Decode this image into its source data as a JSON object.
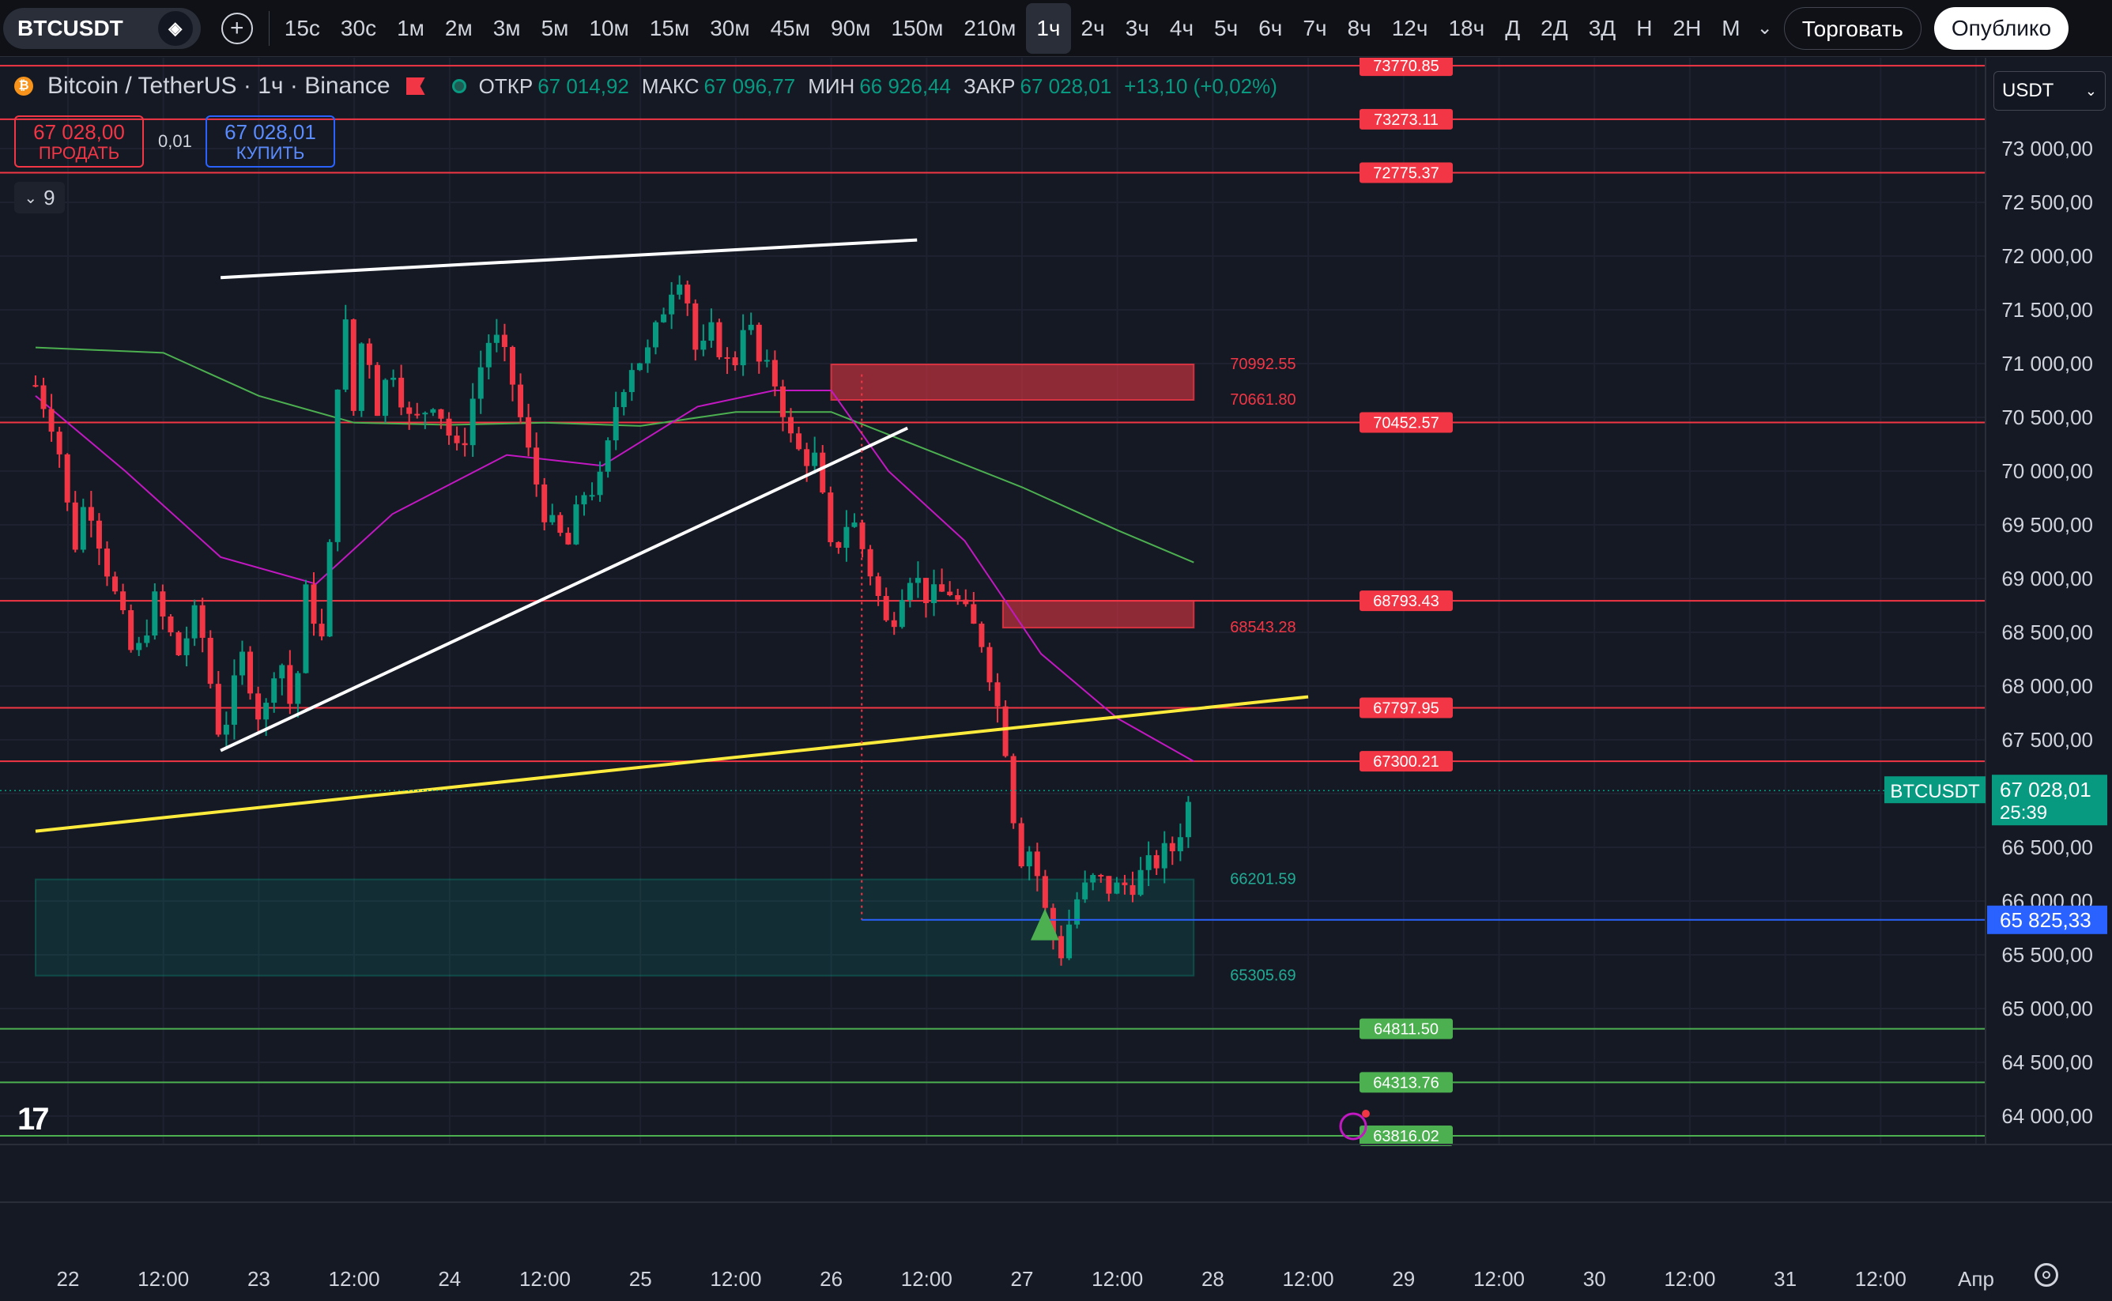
{
  "symbol_pill": "BTCUSDT",
  "intervals": [
    "15с",
    "30с",
    "1м",
    "2м",
    "3м",
    "5м",
    "10м",
    "15м",
    "30м",
    "45м",
    "90м",
    "150м",
    "210м",
    "1ч",
    "2ч",
    "3ч",
    "4ч",
    "5ч",
    "6ч",
    "7ч",
    "8ч",
    "12ч",
    "18ч",
    "Д",
    "2Д",
    "3Д",
    "Н",
    "2Н",
    "М"
  ],
  "active_interval": "1ч",
  "trade_button": "Торговать",
  "publish_button": "Опублико",
  "legend": {
    "title": "Bitcoin / TetherUS · 1ч · Binance",
    "open_label": "ОТКР",
    "open": "67 014,92",
    "high_label": "МАКС",
    "high": "67 096,77",
    "low_label": "МИН",
    "low": "66 926,44",
    "close_label": "ЗАКР",
    "close": "67 028,01",
    "change": "+13,10 (+0,02%)"
  },
  "sell": {
    "price": "67 028,00",
    "label": "ПРОДАТЬ"
  },
  "spread": "0,01",
  "buy": {
    "price": "67 028,01",
    "label": "КУПИТЬ"
  },
  "indicators_count": "9",
  "currency": "USDT",
  "last_price": {
    "symbol": "BTCUSDT",
    "price": "67 028,01",
    "countdown": "25:39"
  },
  "crosshair_price": "65 825,33",
  "chart_data": {
    "type": "candlestick",
    "y_axis": {
      "min": 63500,
      "max": 74000,
      "step": 500
    },
    "y_ticks": [
      "73 000,00",
      "72 500,00",
      "72 000,00",
      "71 500,00",
      "71 000,00",
      "70 500,00",
      "70 000,00",
      "69 500,00",
      "69 000,00",
      "68 500,00",
      "68 000,00",
      "67 500,00",
      "67 000,00",
      "66 500,00",
      "66 000,00",
      "65 500,00",
      "65 000,00",
      "64 500,00",
      "64 000,00"
    ],
    "x_ticks": [
      {
        "label": "22",
        "t": 0.5
      },
      {
        "label": "12:00",
        "t": 1.0
      },
      {
        "label": "23",
        "t": 1.5
      },
      {
        "label": "12:00",
        "t": 2.0
      },
      {
        "label": "24",
        "t": 2.5
      },
      {
        "label": "12:00",
        "t": 3.0
      },
      {
        "label": "25",
        "t": 3.5
      },
      {
        "label": "12:00",
        "t": 4.0
      },
      {
        "label": "26",
        "t": 4.5
      },
      {
        "label": "12:00",
        "t": 5.0
      },
      {
        "label": "27",
        "t": 5.5
      },
      {
        "label": "12:00",
        "t": 6.0
      },
      {
        "label": "28",
        "t": 6.5
      },
      {
        "label": "12:00",
        "t": 7.0
      },
      {
        "label": "29",
        "t": 7.5
      },
      {
        "label": "12:00",
        "t": 8.0
      },
      {
        "label": "30",
        "t": 8.5
      },
      {
        "label": "12:00",
        "t": 9.0
      },
      {
        "label": "31",
        "t": 9.5
      },
      {
        "label": "12:00",
        "t": 10.0
      },
      {
        "label": "Апр",
        "t": 10.5
      }
    ],
    "x_range": [
      0.33,
      10.65
    ],
    "candle_anchors": [
      [
        0.33,
        70800
      ],
      [
        0.41,
        70500
      ],
      [
        0.48,
        70000
      ],
      [
        0.52,
        69200
      ],
      [
        0.6,
        69800
      ],
      [
        0.72,
        69000
      ],
      [
        0.85,
        68200
      ],
      [
        0.95,
        68800
      ],
      [
        1.08,
        68300
      ],
      [
        1.18,
        68700
      ],
      [
        1.3,
        67500
      ],
      [
        1.42,
        68300
      ],
      [
        1.52,
        67600
      ],
      [
        1.6,
        68400
      ],
      [
        1.68,
        67700
      ],
      [
        1.75,
        68900
      ],
      [
        1.85,
        68300
      ],
      [
        1.9,
        70500
      ],
      [
        1.94,
        71600
      ],
      [
        2.0,
        70500
      ],
      [
        2.05,
        71400
      ],
      [
        2.12,
        70600
      ],
      [
        2.2,
        71000
      ],
      [
        2.3,
        70400
      ],
      [
        2.42,
        70700
      ],
      [
        2.55,
        70100
      ],
      [
        2.65,
        70900
      ],
      [
        2.72,
        71300
      ],
      [
        2.82,
        70900
      ],
      [
        2.92,
        70100
      ],
      [
        3.02,
        69500
      ],
      [
        3.12,
        69300
      ],
      [
        3.2,
        69800
      ],
      [
        3.3,
        69900
      ],
      [
        3.38,
        70700
      ],
      [
        3.45,
        71000
      ],
      [
        3.55,
        71100
      ],
      [
        3.65,
        71700
      ],
      [
        3.72,
        71900
      ],
      [
        3.8,
        71000
      ],
      [
        3.88,
        71300
      ],
      [
        3.98,
        70900
      ],
      [
        4.05,
        71500
      ],
      [
        4.12,
        71000
      ],
      [
        4.22,
        70800
      ],
      [
        4.3,
        70200
      ],
      [
        4.42,
        70100
      ],
      [
        4.5,
        69200
      ],
      [
        4.6,
        69600
      ],
      [
        4.7,
        69100
      ],
      [
        4.8,
        68500
      ],
      [
        4.9,
        69100
      ],
      [
        5.02,
        68800
      ],
      [
        5.12,
        68900
      ],
      [
        5.22,
        68600
      ],
      [
        5.3,
        68400
      ],
      [
        5.36,
        67900
      ],
      [
        5.42,
        67400
      ],
      [
        5.48,
        66400
      ],
      [
        5.55,
        66500
      ],
      [
        5.62,
        65900
      ],
      [
        5.7,
        65500
      ],
      [
        5.78,
        66000
      ],
      [
        5.88,
        66200
      ],
      [
        5.98,
        66100
      ],
      [
        6.1,
        66200
      ],
      [
        6.22,
        66400
      ],
      [
        6.3,
        66500
      ],
      [
        6.35,
        66800
      ],
      [
        6.4,
        67028
      ]
    ],
    "ma_green": [
      [
        0.33,
        71150
      ],
      [
        1.0,
        71100
      ],
      [
        1.5,
        70700
      ],
      [
        2.0,
        70450
      ],
      [
        2.5,
        70430
      ],
      [
        3.0,
        70450
      ],
      [
        3.5,
        70420
      ],
      [
        4.0,
        70550
      ],
      [
        4.5,
        70550
      ],
      [
        5.0,
        70200
      ],
      [
        5.5,
        69850
      ],
      [
        6.0,
        69450
      ],
      [
        6.4,
        69150
      ]
    ],
    "ma_purple": [
      [
        0.33,
        70700
      ],
      [
        0.8,
        70000
      ],
      [
        1.3,
        69200
      ],
      [
        1.8,
        68950
      ],
      [
        2.2,
        69600
      ],
      [
        2.8,
        70150
      ],
      [
        3.3,
        70050
      ],
      [
        3.8,
        70600
      ],
      [
        4.2,
        70750
      ],
      [
        4.5,
        70750
      ],
      [
        4.8,
        70000
      ],
      [
        5.2,
        69350
      ],
      [
        5.6,
        68300
      ],
      [
        6.0,
        67700
      ],
      [
        6.4,
        67300
      ]
    ],
    "levels_red": [
      {
        "price": 73770.85,
        "label": "73770.85"
      },
      {
        "price": 73273.11,
        "label": "73273.11"
      },
      {
        "price": 72775.37,
        "label": "72775.37"
      },
      {
        "price": 70452.57,
        "label": "70452.57"
      },
      {
        "price": 68793.43,
        "label": "68793.43"
      },
      {
        "price": 67797.95,
        "label": "67797.95"
      },
      {
        "price": 67300.21,
        "label": "67300.21"
      }
    ],
    "levels_green": [
      {
        "price": 64811.5,
        "label": "64811.50"
      },
      {
        "price": 64313.76,
        "label": "64313.76"
      },
      {
        "price": 63816.02,
        "label": "63816.02"
      }
    ],
    "zones": [
      {
        "type": "supply",
        "top": 70992.55,
        "bottom": 70661.8,
        "from": 4.5,
        "to": 6.4,
        "top_label": "70992.55",
        "bottom_label": "70661.80"
      },
      {
        "type": "supply",
        "top": 68793.43,
        "bottom": 68543.28,
        "from": 5.4,
        "to": 6.4,
        "top_label": "",
        "bottom_label": "68543.28"
      },
      {
        "type": "demand",
        "top": 66201.59,
        "bottom": 65305.69,
        "from": 0.33,
        "to": 6.4,
        "top_label": "66201.59",
        "bottom_label": "65305.69"
      }
    ],
    "trendlines": [
      {
        "color": "white",
        "points": [
          [
            1.3,
            71800
          ],
          [
            4.95,
            72150
          ]
        ]
      },
      {
        "color": "white",
        "points": [
          [
            1.3,
            67400
          ],
          [
            4.9,
            70400
          ]
        ]
      },
      {
        "color": "yellow",
        "points": [
          [
            0.33,
            66650
          ],
          [
            7.0,
            67900
          ]
        ]
      }
    ],
    "crosshair": {
      "t": 4.66,
      "price": 65825.33
    }
  }
}
